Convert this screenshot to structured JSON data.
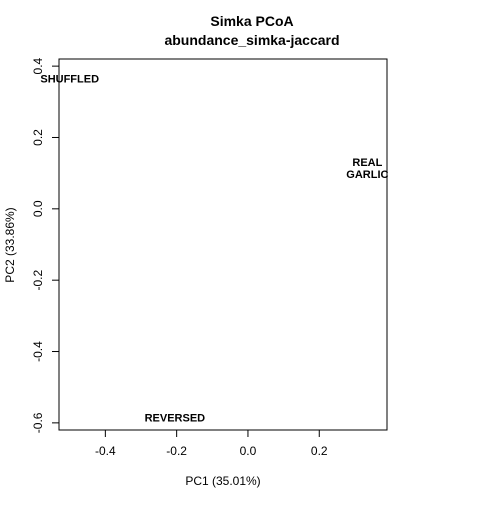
{
  "chart_data": {
    "type": "scatter",
    "title": "Simka PCoA",
    "subtitle": "abundance_simka-jaccard",
    "xlabel": "PC1 (35.01%)",
    "ylabel": "PC2 (33.86%)",
    "xlim": [
      -0.53,
      0.39
    ],
    "ylim": [
      -0.62,
      0.42
    ],
    "x_ticks": [
      -0.4,
      -0.2,
      0.0,
      0.2
    ],
    "x_tick_labels": [
      "-0.4",
      "-0.2",
      "0.0",
      "0.2"
    ],
    "y_ticks": [
      -0.6,
      -0.4,
      -0.2,
      0.0,
      0.2,
      0.4
    ],
    "y_tick_labels": [
      "-0.6",
      "-0.4",
      "-0.2",
      "0.0",
      "0.2",
      "0.4"
    ],
    "grid": false,
    "points": [
      {
        "label": "SHUFFLED",
        "x": -0.5,
        "y": 0.365
      },
      {
        "label": "REAL\nGARLIC",
        "x": 0.335,
        "y": 0.115
      },
      {
        "label": "REVERSED",
        "x": -0.205,
        "y": -0.585
      }
    ]
  }
}
